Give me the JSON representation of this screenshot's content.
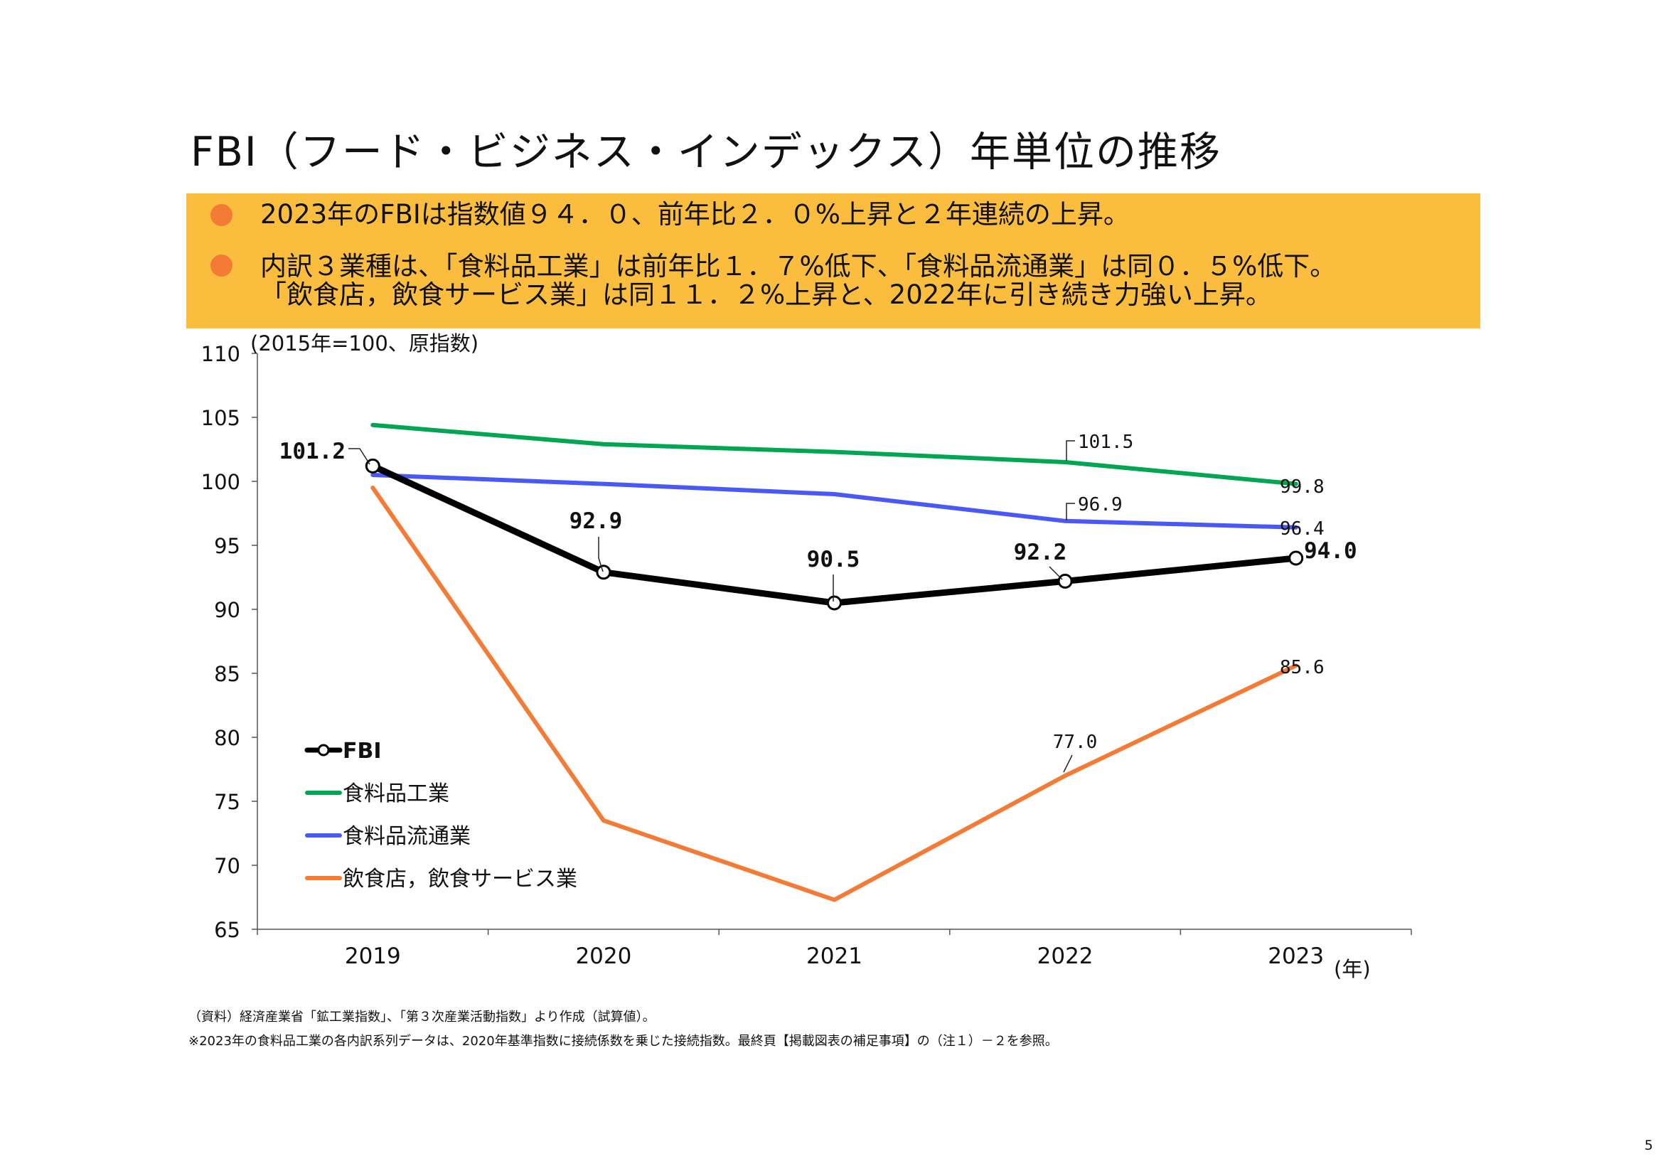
{
  "page": {
    "title": "FBI（フード・ビジネス・インデックス）年単位の推移",
    "page_number": "5"
  },
  "summary": {
    "bullet1": "2023年のFBIは指数値９４．０、前年比２．０%上昇と２年連続の上昇。",
    "bullet2_line1": "内訳３業種は、「食料品工業」は前年比１．７%低下、「食料品流通業」は同０．５%低下。",
    "bullet2_line2": "「飲食店，飲食サービス業」は同１１．２%上昇と、2022年に引き続き力強い上昇。"
  },
  "notes": {
    "source": "（資料）経済産業省「鉱工業指数」、「第３次産業活動指数」より作成（試算値）。",
    "remark": "※2023年の食料品工業の各内訳系列データは、2020年基準指数に接続係数を乗じた接続指数。最終頁【掲載図表の補足事項】の（注１）－２を参照。"
  },
  "colors": {
    "box": "#fbbd3e",
    "bullet": "#f47b35",
    "fbi": "#000000",
    "food_mfg": "#00a650",
    "food_dist": "#4a58f5",
    "restaurant": "#f47b35"
  },
  "chart_data": {
    "type": "line",
    "title": "",
    "unit_label": "(2015年=100、原指数)",
    "xlabel": "(年)",
    "ylabel": "",
    "x": [
      "2019",
      "2020",
      "2021",
      "2022",
      "2023"
    ],
    "ylim": [
      65,
      110
    ],
    "yticks": [
      110,
      105,
      100,
      95,
      90,
      85,
      80,
      75,
      70,
      65
    ],
    "legend_position": "bottom-left",
    "series": [
      {
        "key": "fbi",
        "name": "FBI",
        "values": [
          101.2,
          92.9,
          90.5,
          92.2,
          94.0
        ],
        "labels": [
          "101.2",
          "92.9",
          "90.5",
          "92.2",
          "94.0"
        ],
        "markers": true,
        "bold_labels": true
      },
      {
        "key": "food_mfg",
        "name": "食料品工業",
        "values": [
          104.4,
          102.9,
          102.3,
          101.5,
          99.8
        ],
        "labels": [
          null,
          null,
          null,
          "101.5",
          "99.8"
        ]
      },
      {
        "key": "food_dist",
        "name": "食料品流通業",
        "values": [
          100.5,
          99.8,
          99.0,
          96.9,
          96.4
        ],
        "labels": [
          null,
          null,
          null,
          "96.9",
          "96.4"
        ]
      },
      {
        "key": "restaurant",
        "name": "飲食店，飲食サービス業",
        "values": [
          99.5,
          73.5,
          67.3,
          77.0,
          85.6
        ],
        "labels": [
          null,
          null,
          null,
          "77.0",
          "85.6"
        ]
      }
    ]
  }
}
